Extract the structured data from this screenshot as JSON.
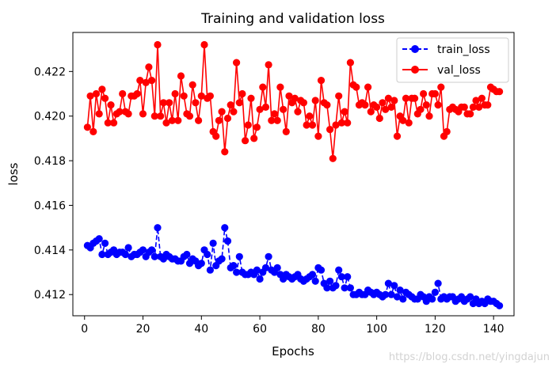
{
  "chart_data": {
    "type": "line",
    "title": "Training and validation loss",
    "xlabel": "Epochs",
    "ylabel": "loss",
    "xlim": [
      -4,
      147
    ],
    "ylim": [
      0.41105,
      0.42375
    ],
    "xticks": [
      0,
      20,
      40,
      60,
      80,
      100,
      120,
      140
    ],
    "yticks": [
      0.412,
      0.414,
      0.416,
      0.418,
      0.42,
      0.422
    ],
    "ytick_labels": [
      "0.412",
      "0.414",
      "0.416",
      "0.418",
      "0.420",
      "0.422"
    ],
    "grid": false,
    "legend_position": "top-right",
    "series": [
      {
        "name": "train_loss",
        "color": "#0000ff",
        "style": "dashed",
        "marker": "circle",
        "x": [
          1,
          2,
          3,
          4,
          5,
          6,
          7,
          8,
          9,
          10,
          11,
          12,
          13,
          14,
          15,
          16,
          17,
          18,
          19,
          20,
          21,
          22,
          23,
          24,
          25,
          26,
          27,
          28,
          29,
          30,
          31,
          32,
          33,
          34,
          35,
          36,
          37,
          38,
          39,
          40,
          41,
          42,
          43,
          44,
          45,
          46,
          47,
          48,
          49,
          50,
          51,
          52,
          53,
          54,
          55,
          56,
          57,
          58,
          59,
          60,
          61,
          62,
          63,
          64,
          65,
          66,
          67,
          68,
          69,
          70,
          71,
          72,
          73,
          74,
          75,
          76,
          77,
          78,
          79,
          80,
          81,
          82,
          83,
          84,
          85,
          86,
          87,
          88,
          89,
          90,
          91,
          92,
          93,
          94,
          95,
          96,
          97,
          98,
          99,
          100,
          101,
          102,
          103,
          104,
          105,
          106,
          107,
          108,
          109,
          110,
          111,
          112,
          113,
          114,
          115,
          116,
          117,
          118,
          119,
          120,
          121,
          122,
          123,
          124,
          125,
          126,
          127,
          128,
          129,
          130,
          131,
          132,
          133,
          134,
          135,
          136,
          137,
          138,
          139,
          140,
          141,
          142
        ],
        "values": [
          0.4142,
          0.4141,
          0.4143,
          0.4144,
          0.4145,
          0.4138,
          0.4143,
          0.4138,
          0.4139,
          0.414,
          0.4138,
          0.4139,
          0.4139,
          0.4138,
          0.4141,
          0.4137,
          0.4138,
          0.4138,
          0.4139,
          0.414,
          0.4137,
          0.4139,
          0.414,
          0.4137,
          0.415,
          0.4137,
          0.4136,
          0.4138,
          0.4137,
          0.4136,
          0.4136,
          0.4135,
          0.4135,
          0.4137,
          0.4138,
          0.4134,
          0.4136,
          0.4135,
          0.4133,
          0.4134,
          0.414,
          0.4138,
          0.4131,
          0.4143,
          0.4133,
          0.4135,
          0.4136,
          0.415,
          0.4144,
          0.4132,
          0.4133,
          0.413,
          0.4137,
          0.413,
          0.4129,
          0.4129,
          0.413,
          0.4129,
          0.4131,
          0.4127,
          0.413,
          0.4132,
          0.4137,
          0.4131,
          0.413,
          0.4132,
          0.4129,
          0.4127,
          0.4129,
          0.4128,
          0.4127,
          0.4128,
          0.4129,
          0.4127,
          0.4126,
          0.4127,
          0.4128,
          0.4129,
          0.4126,
          0.4132,
          0.4131,
          0.4125,
          0.4123,
          0.4126,
          0.4123,
          0.4124,
          0.4131,
          0.4128,
          0.4123,
          0.4128,
          0.4123,
          0.412,
          0.412,
          0.4121,
          0.412,
          0.412,
          0.4122,
          0.4121,
          0.412,
          0.4121,
          0.412,
          0.4119,
          0.412,
          0.4125,
          0.412,
          0.4124,
          0.4119,
          0.4122,
          0.4118,
          0.4121,
          0.412,
          0.4119,
          0.4118,
          0.4118,
          0.412,
          0.4119,
          0.4117,
          0.4119,
          0.4118,
          0.4121,
          0.4125,
          0.4118,
          0.4119,
          0.4118,
          0.4119,
          0.4119,
          0.4117,
          0.4118,
          0.4119,
          0.4117,
          0.4118,
          0.4119,
          0.4116,
          0.4118,
          0.4116,
          0.4117,
          0.4116,
          0.4118,
          0.4117,
          0.4117,
          0.4116,
          0.4115
        ]
      },
      {
        "name": "val_loss",
        "color": "#ff0000",
        "style": "solid",
        "marker": "circle",
        "x": [
          1,
          2,
          3,
          4,
          5,
          6,
          7,
          8,
          9,
          10,
          11,
          12,
          13,
          14,
          15,
          16,
          17,
          18,
          19,
          20,
          21,
          22,
          23,
          24,
          25,
          26,
          27,
          28,
          29,
          30,
          31,
          32,
          33,
          34,
          35,
          36,
          37,
          38,
          39,
          40,
          41,
          42,
          43,
          44,
          45,
          46,
          47,
          48,
          49,
          50,
          51,
          52,
          53,
          54,
          55,
          56,
          57,
          58,
          59,
          60,
          61,
          62,
          63,
          64,
          65,
          66,
          67,
          68,
          69,
          70,
          71,
          72,
          73,
          74,
          75,
          76,
          77,
          78,
          79,
          80,
          81,
          82,
          83,
          84,
          85,
          86,
          87,
          88,
          89,
          90,
          91,
          92,
          93,
          94,
          95,
          96,
          97,
          98,
          99,
          100,
          101,
          102,
          103,
          104,
          105,
          106,
          107,
          108,
          109,
          110,
          111,
          112,
          113,
          114,
          115,
          116,
          117,
          118,
          119,
          120,
          121,
          122,
          123,
          124,
          125,
          126,
          127,
          128,
          129,
          130,
          131,
          132,
          133,
          134,
          135,
          136,
          137,
          138,
          139,
          140,
          141,
          142
        ],
        "values": [
          0.4195,
          0.4209,
          0.4193,
          0.421,
          0.4201,
          0.4212,
          0.4208,
          0.4197,
          0.4205,
          0.4197,
          0.4201,
          0.4202,
          0.421,
          0.4202,
          0.4201,
          0.4209,
          0.4209,
          0.421,
          0.4216,
          0.4201,
          0.4215,
          0.4222,
          0.4216,
          0.42,
          0.4232,
          0.42,
          0.4206,
          0.4197,
          0.4206,
          0.4198,
          0.421,
          0.4198,
          0.4218,
          0.4209,
          0.4201,
          0.42,
          0.4214,
          0.4206,
          0.4198,
          0.4209,
          0.4232,
          0.4208,
          0.4209,
          0.4193,
          0.4191,
          0.4198,
          0.4202,
          0.4184,
          0.4199,
          0.4205,
          0.4202,
          0.4224,
          0.4206,
          0.421,
          0.4189,
          0.4196,
          0.4208,
          0.419,
          0.4195,
          0.4203,
          0.4213,
          0.4204,
          0.4223,
          0.4198,
          0.4201,
          0.4198,
          0.4213,
          0.4203,
          0.4193,
          0.4209,
          0.4206,
          0.4208,
          0.4202,
          0.4207,
          0.4206,
          0.4196,
          0.42,
          0.4196,
          0.4207,
          0.4191,
          0.4216,
          0.4206,
          0.4205,
          0.4194,
          0.4181,
          0.4196,
          0.4209,
          0.4197,
          0.4202,
          0.4197,
          0.4224,
          0.4214,
          0.4213,
          0.4205,
          0.4206,
          0.4205,
          0.4213,
          0.4202,
          0.4205,
          0.4204,
          0.4199,
          0.4206,
          0.4203,
          0.4208,
          0.4204,
          0.4207,
          0.4191,
          0.42,
          0.4198,
          0.4208,
          0.4197,
          0.4208,
          0.4208,
          0.4201,
          0.4203,
          0.421,
          0.4205,
          0.42,
          0.421,
          0.421,
          0.4205,
          0.4213,
          0.4191,
          0.4193,
          0.4203,
          0.4204,
          0.4203,
          0.4202,
          0.4204,
          0.4204,
          0.4201,
          0.4201,
          0.4204,
          0.4207,
          0.4204,
          0.4208,
          0.4205,
          0.4205,
          0.4213,
          0.4212,
          0.4211,
          0.4211
        ]
      }
    ]
  },
  "watermark": "https://blog.csdn.net/yingdajun"
}
